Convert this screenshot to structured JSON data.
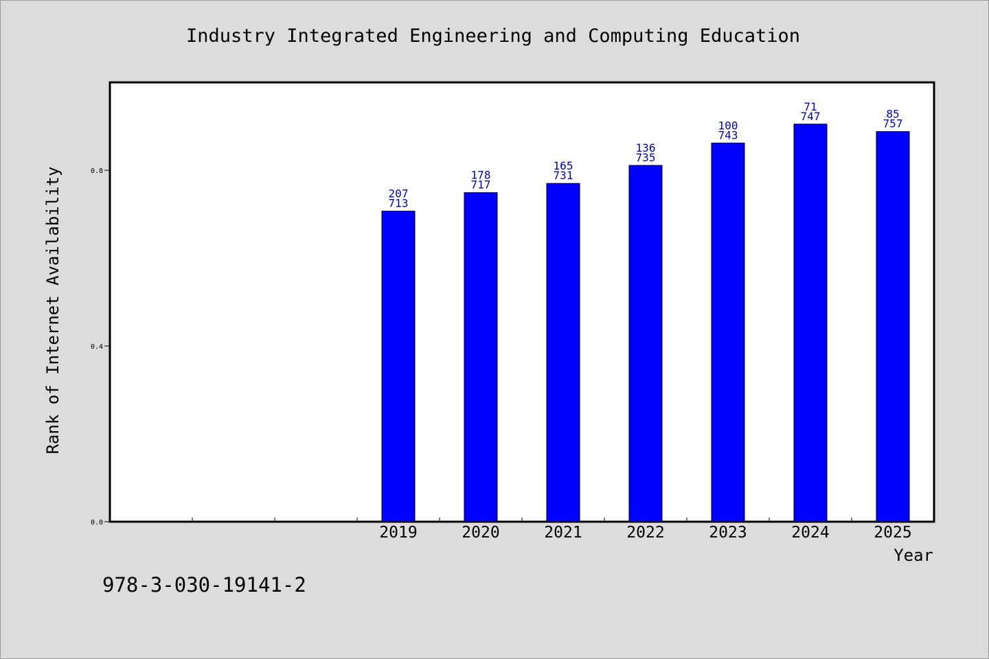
{
  "chart_data": {
    "type": "bar",
    "title": "Industry Integrated Engineering and Computing Education",
    "xlabel": "Year",
    "ylabel": "Rank of Internet Availability",
    "categories": [
      "",
      "",
      "",
      "2019",
      "2020",
      "2021",
      "2022",
      "2023",
      "2024",
      "2025"
    ],
    "values": [
      null,
      null,
      null,
      0.707,
      0.749,
      0.77,
      0.811,
      0.862,
      0.905,
      0.888
    ],
    "labels_top": [
      "",
      "",
      "",
      "207",
      "178",
      "165",
      "136",
      "100",
      "71",
      "85"
    ],
    "labels_bottom": [
      "",
      "",
      "",
      "713",
      "717",
      "731",
      "735",
      "743",
      "747",
      "757"
    ],
    "ylim": [
      0,
      1.0
    ],
    "yticks": [
      0.0,
      0.4,
      0.8
    ],
    "ytick_labels": [
      "0.0",
      "0.4",
      "0.8"
    ],
    "grid": false,
    "bar_color": "#0000ff",
    "label_color": "#0000c8"
  },
  "footnote": "978-3-030-19141-2"
}
